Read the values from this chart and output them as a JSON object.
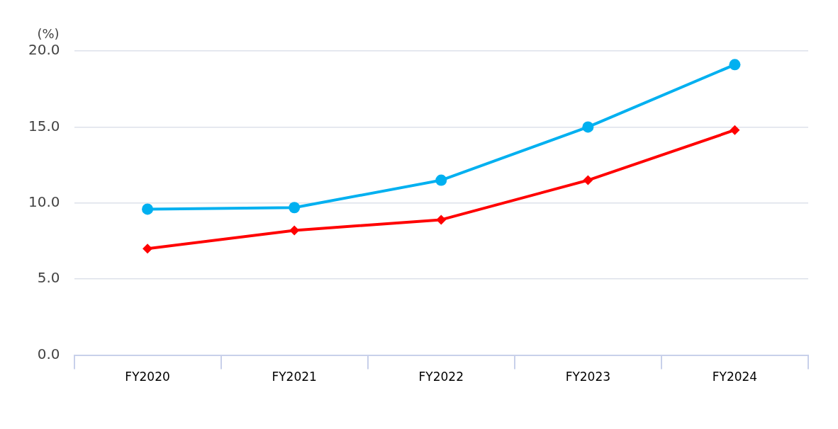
{
  "chart_data": {
    "type": "line",
    "ylabel": "(%)",
    "categories": [
      "FY2020",
      "FY2021",
      "FY2022",
      "FY2023",
      "FY2024"
    ],
    "series": [
      {
        "color": "#00b0f0",
        "marker": "circle",
        "values": [
          9.6,
          9.7,
          11.5,
          15.0,
          19.1
        ]
      },
      {
        "color": "#ff0000",
        "marker": "diamond",
        "values": [
          7.0,
          8.2,
          8.9,
          11.5,
          14.8
        ]
      }
    ],
    "ylim": [
      0,
      20
    ],
    "yticks": [
      {
        "value": 0,
        "label": "0.0"
      },
      {
        "value": 5,
        "label": "5.0"
      },
      {
        "value": 10,
        "label": "10.0"
      },
      {
        "value": 15,
        "label": "15.0"
      },
      {
        "value": 20,
        "label": "20.0"
      }
    ],
    "grid": "y",
    "legend": false,
    "line_style": "solid"
  }
}
